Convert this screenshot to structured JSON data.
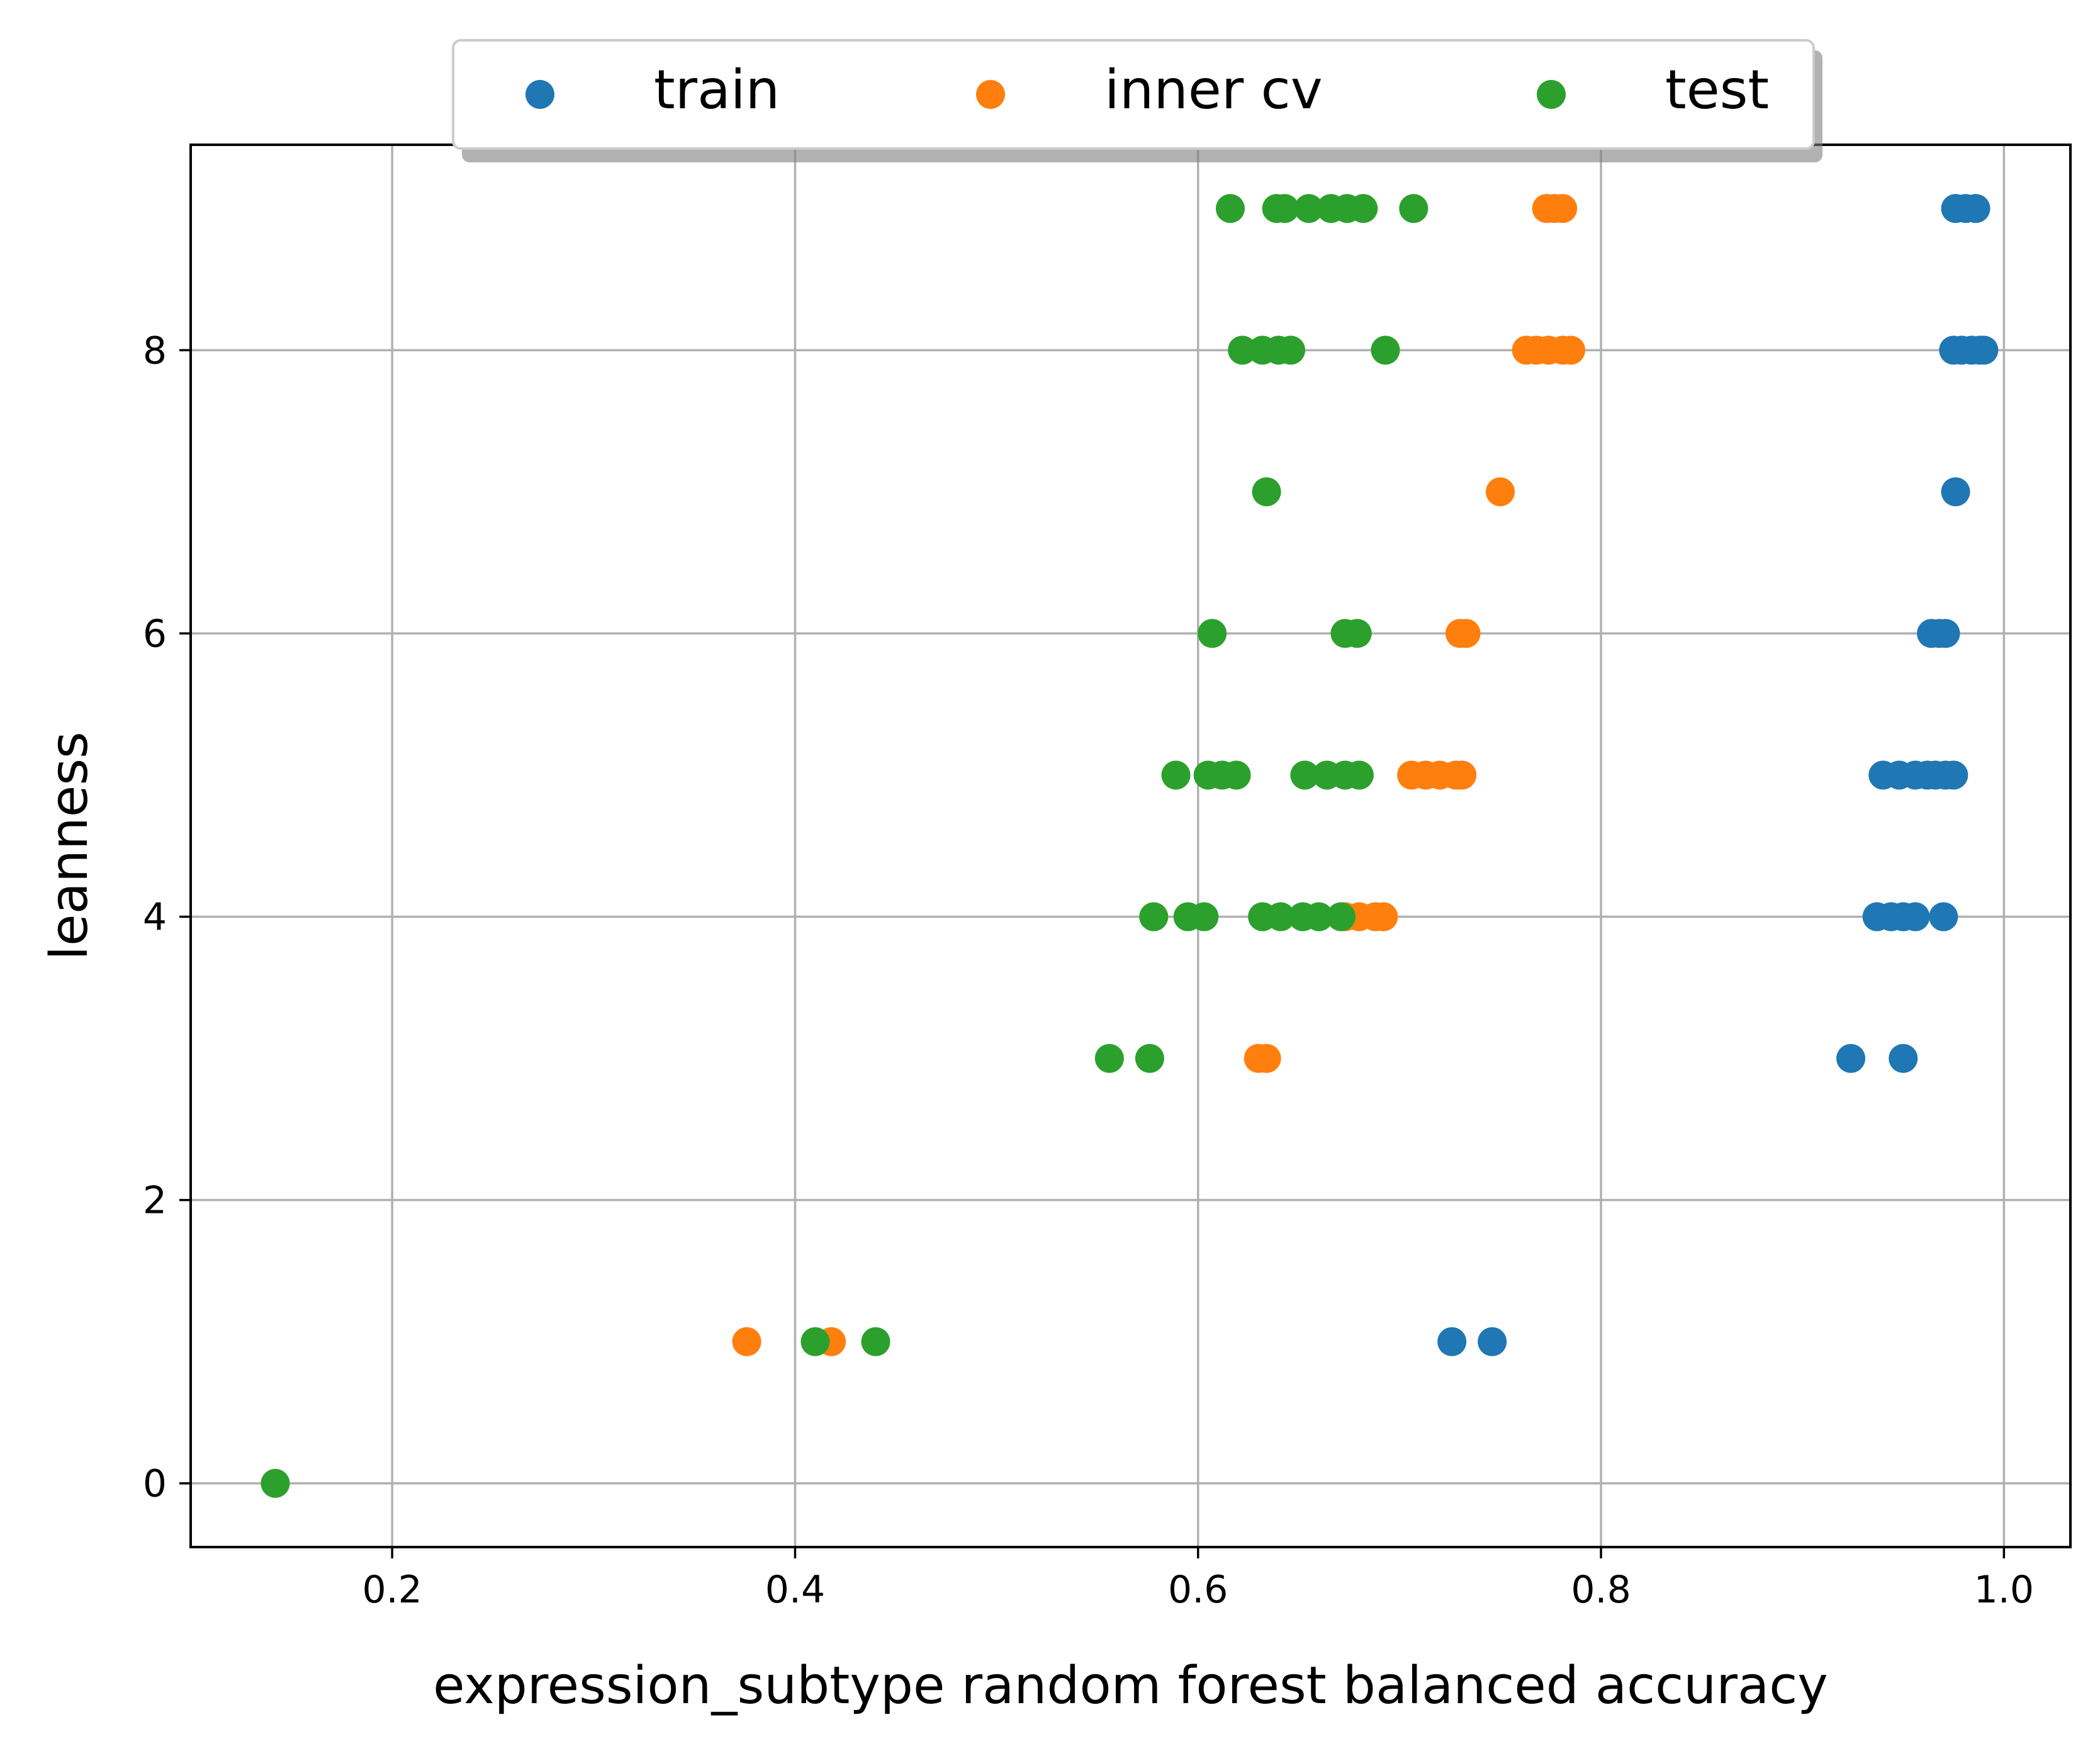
{
  "chart_data": {
    "type": "scatter",
    "title": "",
    "xlabel": "expression_subtype random forest balanced accuracy",
    "ylabel": "leanness",
    "xlim": [
      0.1,
      1.033
    ],
    "ylim": [
      -0.45,
      9.45
    ],
    "xticks": [
      0.2,
      0.4,
      0.6,
      0.8,
      1.0
    ],
    "xtick_labels": [
      "0.2",
      "0.4",
      "0.6",
      "0.8",
      "1.0"
    ],
    "yticks": [
      0,
      2,
      4,
      6,
      8
    ],
    "ytick_labels": [
      "0",
      "2",
      "4",
      "6",
      "8"
    ],
    "grid": true,
    "legend_position": "top-center",
    "series": [
      {
        "name": "train",
        "color": "#1f77b4",
        "points": [
          [
            0.976,
            9
          ],
          [
            0.981,
            9
          ],
          [
            0.986,
            9
          ],
          [
            0.975,
            8
          ],
          [
            0.979,
            8
          ],
          [
            0.984,
            8
          ],
          [
            0.988,
            8
          ],
          [
            0.99,
            8
          ],
          [
            0.976,
            7
          ],
          [
            0.964,
            6
          ],
          [
            0.968,
            6
          ],
          [
            0.971,
            6
          ],
          [
            0.94,
            5
          ],
          [
            0.948,
            5
          ],
          [
            0.956,
            5
          ],
          [
            0.962,
            5
          ],
          [
            0.966,
            5
          ],
          [
            0.971,
            5
          ],
          [
            0.975,
            5
          ],
          [
            0.937,
            4
          ],
          [
            0.944,
            4
          ],
          [
            0.95,
            4
          ],
          [
            0.956,
            4
          ],
          [
            0.97,
            4
          ],
          [
            0.924,
            3
          ],
          [
            0.95,
            3
          ],
          [
            0.726,
            1
          ],
          [
            0.746,
            1
          ]
        ]
      },
      {
        "name": "inner cv",
        "color": "#ff7f0e",
        "points": [
          [
            0.773,
            9
          ],
          [
            0.777,
            9
          ],
          [
            0.781,
            9
          ],
          [
            0.763,
            8
          ],
          [
            0.768,
            8
          ],
          [
            0.774,
            8
          ],
          [
            0.781,
            8
          ],
          [
            0.785,
            8
          ],
          [
            0.75,
            7
          ],
          [
            0.73,
            6
          ],
          [
            0.733,
            6
          ],
          [
            0.706,
            5
          ],
          [
            0.713,
            5
          ],
          [
            0.72,
            5
          ],
          [
            0.728,
            5
          ],
          [
            0.731,
            5
          ],
          [
            0.673,
            4
          ],
          [
            0.68,
            4
          ],
          [
            0.688,
            4
          ],
          [
            0.692,
            4
          ],
          [
            0.63,
            3
          ],
          [
            0.634,
            3
          ],
          [
            0.376,
            1
          ],
          [
            0.418,
            1
          ]
        ]
      },
      {
        "name": "test",
        "color": "#2ca02c",
        "points": [
          [
            0.616,
            9
          ],
          [
            0.639,
            9
          ],
          [
            0.643,
            9
          ],
          [
            0.655,
            9
          ],
          [
            0.666,
            9
          ],
          [
            0.674,
            9
          ],
          [
            0.682,
            9
          ],
          [
            0.707,
            9
          ],
          [
            0.622,
            8
          ],
          [
            0.632,
            8
          ],
          [
            0.64,
            8
          ],
          [
            0.646,
            8
          ],
          [
            0.693,
            8
          ],
          [
            0.634,
            7
          ],
          [
            0.607,
            6
          ],
          [
            0.673,
            6
          ],
          [
            0.679,
            6
          ],
          [
            0.589,
            5
          ],
          [
            0.605,
            5
          ],
          [
            0.612,
            5
          ],
          [
            0.619,
            5
          ],
          [
            0.653,
            5
          ],
          [
            0.664,
            5
          ],
          [
            0.673,
            5
          ],
          [
            0.68,
            5
          ],
          [
            0.578,
            4
          ],
          [
            0.595,
            4
          ],
          [
            0.603,
            4
          ],
          [
            0.632,
            4
          ],
          [
            0.641,
            4
          ],
          [
            0.652,
            4
          ],
          [
            0.66,
            4
          ],
          [
            0.671,
            4
          ],
          [
            0.556,
            3
          ],
          [
            0.576,
            3
          ],
          [
            0.41,
            1
          ],
          [
            0.44,
            1
          ],
          [
            0.142,
            0
          ]
        ]
      }
    ]
  }
}
